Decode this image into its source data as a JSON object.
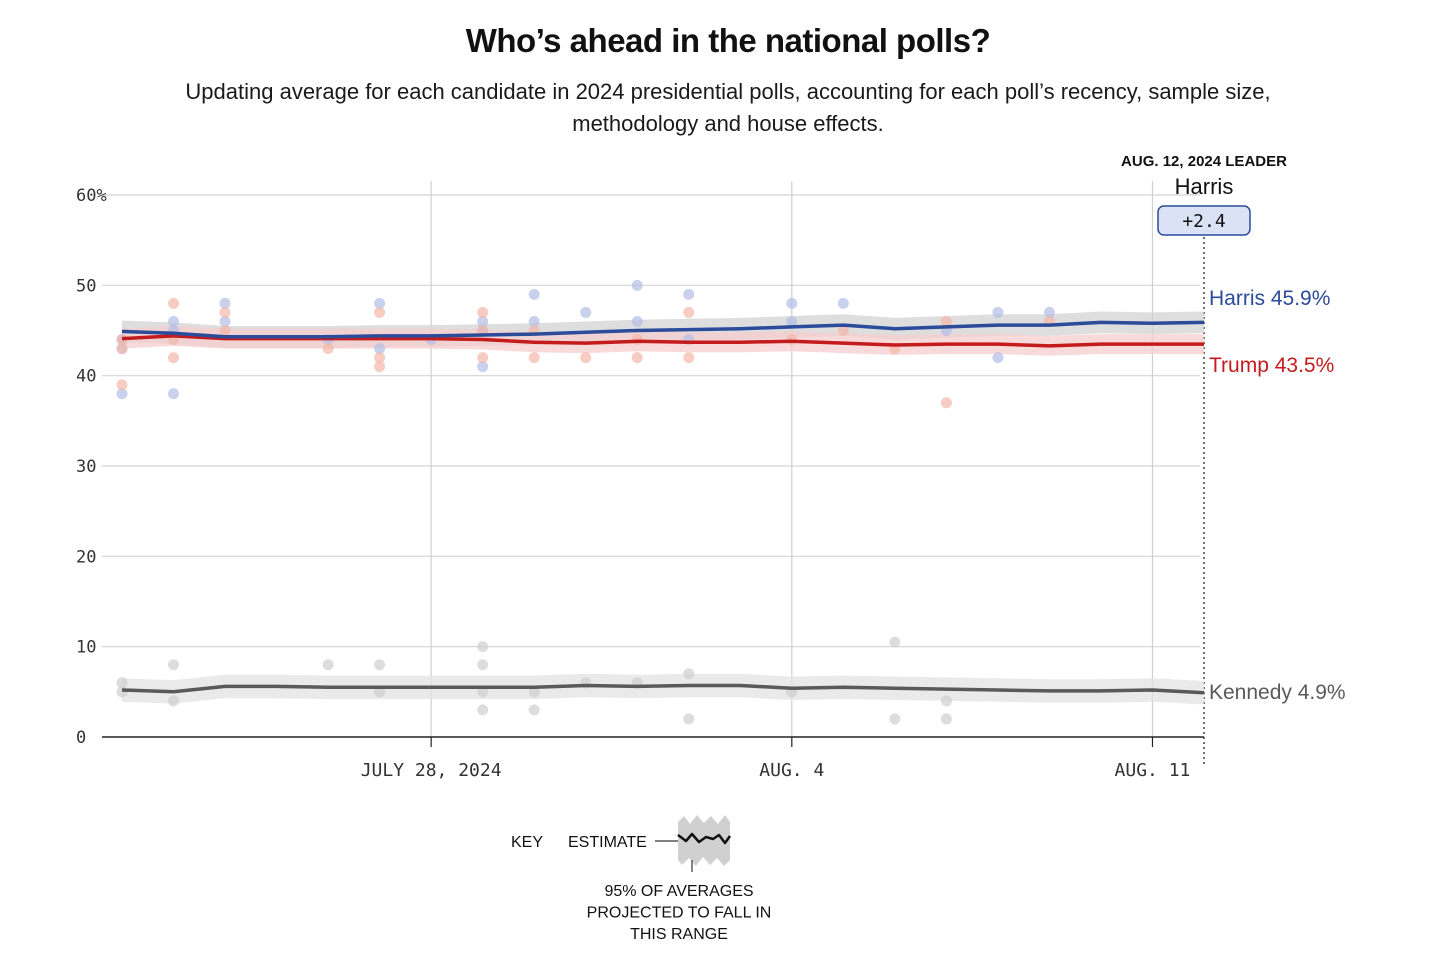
{
  "chart_data": {
    "type": "line",
    "title": "Who’s ahead in the national polls?",
    "subtitle": "Updating average for each candidate in 2024 presidential polls, accounting for each poll’s recency, sample size, methodology and house effects.",
    "ylim": [
      0,
      60
    ],
    "y_ticks": [
      0,
      10,
      20,
      30,
      40,
      50,
      60
    ],
    "y_tick_labels": [
      "0",
      "10",
      "20",
      "30",
      "40",
      "50",
      "60%"
    ],
    "x_range": [
      "2024-07-22",
      "2024-08-12"
    ],
    "x_ticks": [
      {
        "date": "2024-07-28",
        "label": "JULY 28, 2024"
      },
      {
        "date": "2024-08-04",
        "label": "AUG. 4"
      },
      {
        "date": "2024-08-11",
        "label": "AUG. 11"
      }
    ],
    "leader": {
      "heading": "AUG. 12, 2024 LEADER",
      "name": "Harris",
      "margin": "+2.4"
    },
    "series": [
      {
        "name": "Harris",
        "end_label": "Harris 45.9%",
        "color": "#2b4b9b",
        "dot_color": "#b3bde6",
        "band_color": "#d3d3d3",
        "points": [
          [
            "2024-07-22",
            44.9
          ],
          [
            "2024-07-23",
            44.7
          ],
          [
            "2024-07-24",
            44.3
          ],
          [
            "2024-07-25",
            44.3
          ],
          [
            "2024-07-26",
            44.3
          ],
          [
            "2024-07-27",
            44.4
          ],
          [
            "2024-07-28",
            44.4
          ],
          [
            "2024-07-29",
            44.5
          ],
          [
            "2024-07-30",
            44.6
          ],
          [
            "2024-07-31",
            44.8
          ],
          [
            "2024-08-01",
            45.0
          ],
          [
            "2024-08-02",
            45.1
          ],
          [
            "2024-08-03",
            45.2
          ],
          [
            "2024-08-04",
            45.4
          ],
          [
            "2024-08-05",
            45.6
          ],
          [
            "2024-08-06",
            45.2
          ],
          [
            "2024-08-07",
            45.4
          ],
          [
            "2024-08-08",
            45.6
          ],
          [
            "2024-08-09",
            45.6
          ],
          [
            "2024-08-10",
            45.9
          ],
          [
            "2024-08-11",
            45.8
          ],
          [
            "2024-08-12",
            45.9
          ]
        ],
        "polls": [
          [
            "2024-07-22",
            38
          ],
          [
            "2024-07-22",
            43
          ],
          [
            "2024-07-22",
            44
          ],
          [
            "2024-07-23",
            46
          ],
          [
            "2024-07-23",
            45
          ],
          [
            "2024-07-23",
            38
          ],
          [
            "2024-07-24",
            48
          ],
          [
            "2024-07-24",
            46
          ],
          [
            "2024-07-26",
            44
          ],
          [
            "2024-07-27",
            48
          ],
          [
            "2024-07-27",
            43
          ],
          [
            "2024-07-28",
            44
          ],
          [
            "2024-07-29",
            46
          ],
          [
            "2024-07-29",
            41
          ],
          [
            "2024-07-29",
            45
          ],
          [
            "2024-07-30",
            49
          ],
          [
            "2024-07-30",
            46
          ],
          [
            "2024-07-31",
            47
          ],
          [
            "2024-08-01",
            50
          ],
          [
            "2024-08-01",
            46
          ],
          [
            "2024-08-02",
            49
          ],
          [
            "2024-08-02",
            44
          ],
          [
            "2024-08-04",
            48
          ],
          [
            "2024-08-04",
            46
          ],
          [
            "2024-08-05",
            48
          ],
          [
            "2024-08-07",
            45
          ],
          [
            "2024-08-08",
            47
          ],
          [
            "2024-08-08",
            42
          ],
          [
            "2024-08-09",
            47
          ]
        ]
      },
      {
        "name": "Trump",
        "end_label": "Trump 43.5%",
        "color": "#c41c1c",
        "dot_color": "#f4b6a8",
        "band_color": "#f6cdcd",
        "points": [
          [
            "2024-07-22",
            44.1
          ],
          [
            "2024-07-23",
            44.4
          ],
          [
            "2024-07-24",
            44.1
          ],
          [
            "2024-07-25",
            44.1
          ],
          [
            "2024-07-26",
            44.1
          ],
          [
            "2024-07-27",
            44.1
          ],
          [
            "2024-07-28",
            44.1
          ],
          [
            "2024-07-29",
            44.0
          ],
          [
            "2024-07-30",
            43.7
          ],
          [
            "2024-07-31",
            43.6
          ],
          [
            "2024-08-01",
            43.8
          ],
          [
            "2024-08-02",
            43.7
          ],
          [
            "2024-08-03",
            43.7
          ],
          [
            "2024-08-04",
            43.8
          ],
          [
            "2024-08-05",
            43.6
          ],
          [
            "2024-08-06",
            43.4
          ],
          [
            "2024-08-07",
            43.5
          ],
          [
            "2024-08-08",
            43.5
          ],
          [
            "2024-08-09",
            43.3
          ],
          [
            "2024-08-10",
            43.5
          ],
          [
            "2024-08-11",
            43.5
          ],
          [
            "2024-08-12",
            43.5
          ]
        ],
        "polls": [
          [
            "2024-07-22",
            39
          ],
          [
            "2024-07-22",
            43
          ],
          [
            "2024-07-22",
            44
          ],
          [
            "2024-07-23",
            48
          ],
          [
            "2024-07-23",
            42
          ],
          [
            "2024-07-23",
            44
          ],
          [
            "2024-07-24",
            47
          ],
          [
            "2024-07-24",
            45
          ],
          [
            "2024-07-26",
            43
          ],
          [
            "2024-07-27",
            47
          ],
          [
            "2024-07-27",
            42
          ],
          [
            "2024-07-27",
            41
          ],
          [
            "2024-07-29",
            47
          ],
          [
            "2024-07-29",
            45
          ],
          [
            "2024-07-29",
            42
          ],
          [
            "2024-07-30",
            45
          ],
          [
            "2024-07-30",
            42
          ],
          [
            "2024-07-31",
            42
          ],
          [
            "2024-08-01",
            44
          ],
          [
            "2024-08-01",
            42
          ],
          [
            "2024-08-02",
            47
          ],
          [
            "2024-08-02",
            42
          ],
          [
            "2024-08-04",
            44
          ],
          [
            "2024-08-05",
            45
          ],
          [
            "2024-08-06",
            43
          ],
          [
            "2024-08-07",
            46
          ],
          [
            "2024-08-07",
            37
          ],
          [
            "2024-08-09",
            46
          ]
        ]
      },
      {
        "name": "Kennedy",
        "end_label": "Kennedy 4.9%",
        "color": "#5a5a5a",
        "dot_color": "#cfcfcf",
        "band_color": "#e3e3e3",
        "points": [
          [
            "2024-07-22",
            5.2
          ],
          [
            "2024-07-23",
            5.0
          ],
          [
            "2024-07-24",
            5.6
          ],
          [
            "2024-07-25",
            5.6
          ],
          [
            "2024-07-26",
            5.5
          ],
          [
            "2024-07-27",
            5.5
          ],
          [
            "2024-07-28",
            5.5
          ],
          [
            "2024-07-29",
            5.5
          ],
          [
            "2024-07-30",
            5.5
          ],
          [
            "2024-07-31",
            5.7
          ],
          [
            "2024-08-01",
            5.6
          ],
          [
            "2024-08-02",
            5.7
          ],
          [
            "2024-08-03",
            5.7
          ],
          [
            "2024-08-04",
            5.4
          ],
          [
            "2024-08-05",
            5.5
          ],
          [
            "2024-08-06",
            5.4
          ],
          [
            "2024-08-07",
            5.3
          ],
          [
            "2024-08-08",
            5.2
          ],
          [
            "2024-08-09",
            5.1
          ],
          [
            "2024-08-10",
            5.1
          ],
          [
            "2024-08-11",
            5.2
          ],
          [
            "2024-08-12",
            4.9
          ]
        ],
        "polls": [
          [
            "2024-07-22",
            6
          ],
          [
            "2024-07-22",
            5
          ],
          [
            "2024-07-23",
            8
          ],
          [
            "2024-07-23",
            4
          ],
          [
            "2024-07-26",
            8
          ],
          [
            "2024-07-27",
            8
          ],
          [
            "2024-07-27",
            5
          ],
          [
            "2024-07-29",
            10
          ],
          [
            "2024-07-29",
            8
          ],
          [
            "2024-07-29",
            5
          ],
          [
            "2024-07-29",
            3
          ],
          [
            "2024-07-30",
            5
          ],
          [
            "2024-07-30",
            3
          ],
          [
            "2024-07-31",
            6
          ],
          [
            "2024-08-01",
            6
          ],
          [
            "2024-08-02",
            7
          ],
          [
            "2024-08-02",
            2
          ],
          [
            "2024-08-04",
            5
          ],
          [
            "2024-08-06",
            10.5
          ],
          [
            "2024-08-06",
            2
          ],
          [
            "2024-08-07",
            4
          ],
          [
            "2024-08-07",
            2
          ]
        ]
      }
    ],
    "key": {
      "key_label": "KEY",
      "estimate_label": "ESTIMATE",
      "range_label": [
        "95% OF AVERAGES",
        "PROJECTED TO FALL IN",
        "THIS RANGE"
      ]
    }
  }
}
